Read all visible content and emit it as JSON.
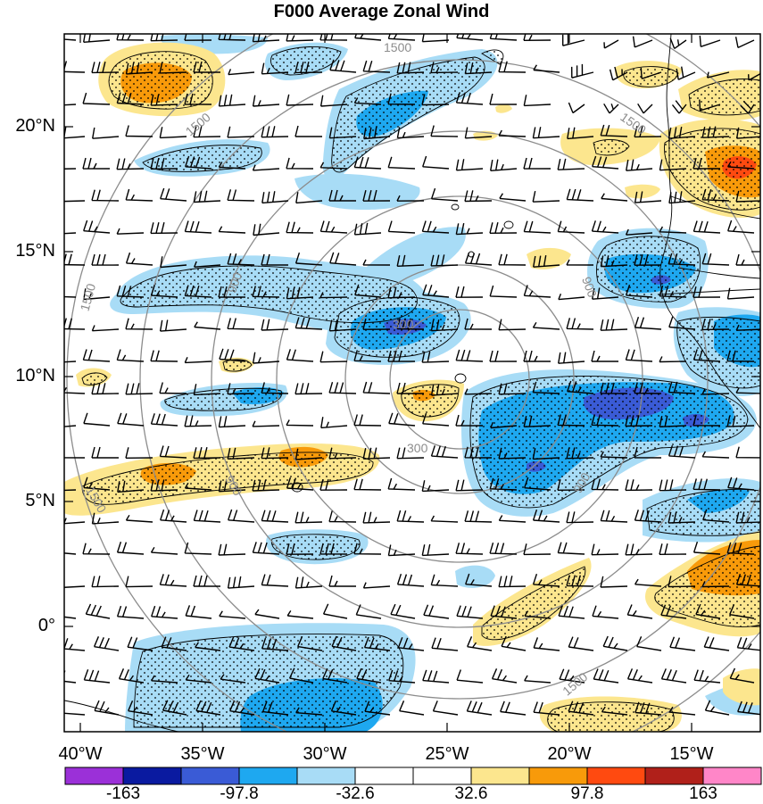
{
  "title": "F000 Average Zonal Wind",
  "map": {
    "lat_labels": [
      "20°N",
      "15°N",
      "10°N",
      "5°N",
      "0°"
    ],
    "lon_labels": [
      "40°W",
      "35°W",
      "30°W",
      "25°W",
      "20°W",
      "15°W"
    ],
    "range_ring_labels": [
      "300",
      "300",
      "900",
      "900",
      "900",
      "900",
      "1500",
      "1500",
      "1500",
      "1500",
      "1500",
      "1500"
    ],
    "colors": {
      "ring": "#8c8c8c",
      "coast": "#000000",
      "stipple": "#000000"
    }
  },
  "colorbar": {
    "colors": [
      "#9b30d8",
      "#0a1aa0",
      "#3a5bd6",
      "#1ea8f0",
      "#a8dcf6",
      "#ffffff",
      "#ffffff",
      "#fce68e",
      "#f89a0a",
      "#ff4a10",
      "#b0201a",
      "#ff86c8"
    ],
    "labels": [
      "-163",
      "-97.8",
      "-32.6",
      "32.6",
      "97.8",
      "163"
    ]
  }
}
